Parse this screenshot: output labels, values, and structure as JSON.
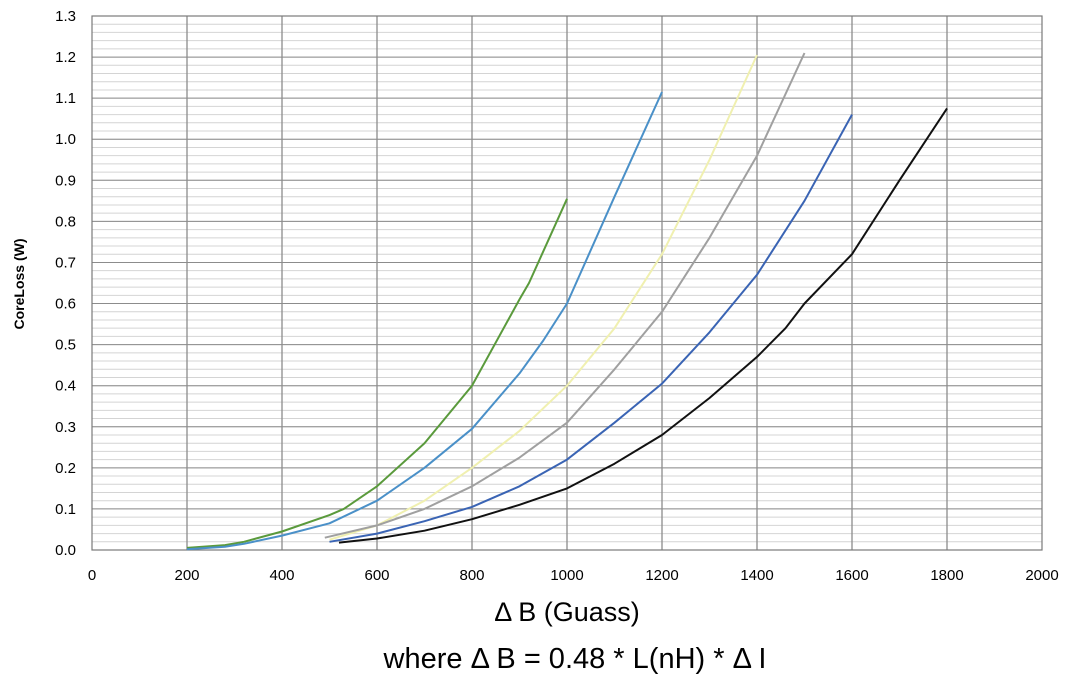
{
  "chart_data": {
    "type": "line",
    "xlabel": "Δ B (Guass)",
    "formula": "where Δ B = 0.48 * L(nH) * Δ I",
    "ylabel": "CoreLoss (W)",
    "xlim": [
      0,
      2000
    ],
    "ylim": [
      0,
      1.3
    ],
    "x_ticks": [
      "0",
      "200",
      "400",
      "600",
      "800",
      "1000",
      "1200",
      "1400",
      "1600",
      "1800",
      "2000"
    ],
    "y_ticks": [
      "0.0",
      "0.1",
      "0.2",
      "0.3",
      "0.4",
      "0.5",
      "0.6",
      "0.7",
      "0.8",
      "0.9",
      "1.0",
      "1.1",
      "1.2",
      "1.3"
    ],
    "x_major_step": 200,
    "y_major_step": 0.1,
    "y_minor_step": 0.02,
    "grid": true,
    "legend": "none",
    "series": [
      {
        "color": "#5a9a3c",
        "points": [
          [
            200,
            0.005
          ],
          [
            280,
            0.012
          ],
          [
            320,
            0.02
          ],
          [
            400,
            0.045
          ],
          [
            500,
            0.085
          ],
          [
            530,
            0.1
          ],
          [
            600,
            0.155
          ],
          [
            700,
            0.26
          ],
          [
            800,
            0.4
          ],
          [
            900,
            0.61
          ],
          [
            920,
            0.65
          ],
          [
            1000,
            0.855
          ]
        ]
      },
      {
        "color": "#4a90c8",
        "points": [
          [
            200,
            0.002
          ],
          [
            280,
            0.008
          ],
          [
            320,
            0.015
          ],
          [
            400,
            0.035
          ],
          [
            500,
            0.065
          ],
          [
            600,
            0.12
          ],
          [
            700,
            0.2
          ],
          [
            800,
            0.295
          ],
          [
            900,
            0.43
          ],
          [
            950,
            0.51
          ],
          [
            1000,
            0.6
          ],
          [
            1100,
            0.86
          ],
          [
            1200,
            1.115
          ]
        ]
      },
      {
        "color": "#f0f0b0",
        "points": [
          [
            500,
            0.025
          ],
          [
            600,
            0.06
          ],
          [
            700,
            0.12
          ],
          [
            800,
            0.2
          ],
          [
            900,
            0.29
          ],
          [
            1000,
            0.4
          ],
          [
            1100,
            0.54
          ],
          [
            1200,
            0.72
          ],
          [
            1300,
            0.95
          ],
          [
            1400,
            1.205
          ]
        ]
      },
      {
        "color": "#a0a0a0",
        "points": [
          [
            490,
            0.03
          ],
          [
            600,
            0.06
          ],
          [
            700,
            0.1
          ],
          [
            800,
            0.155
          ],
          [
            900,
            0.225
          ],
          [
            1000,
            0.31
          ],
          [
            1100,
            0.44
          ],
          [
            1200,
            0.58
          ],
          [
            1300,
            0.76
          ],
          [
            1400,
            0.96
          ],
          [
            1500,
            1.21
          ]
        ]
      },
      {
        "color": "#3a64b4",
        "points": [
          [
            500,
            0.02
          ],
          [
            600,
            0.04
          ],
          [
            700,
            0.07
          ],
          [
            800,
            0.105
          ],
          [
            900,
            0.155
          ],
          [
            1000,
            0.22
          ],
          [
            1100,
            0.31
          ],
          [
            1200,
            0.405
          ],
          [
            1300,
            0.53
          ],
          [
            1400,
            0.67
          ],
          [
            1500,
            0.85
          ],
          [
            1600,
            1.06
          ]
        ]
      },
      {
        "color": "#111111",
        "points": [
          [
            520,
            0.018
          ],
          [
            600,
            0.028
          ],
          [
            700,
            0.047
          ],
          [
            800,
            0.075
          ],
          [
            900,
            0.11
          ],
          [
            1000,
            0.15
          ],
          [
            1100,
            0.21
          ],
          [
            1200,
            0.28
          ],
          [
            1300,
            0.37
          ],
          [
            1400,
            0.47
          ],
          [
            1460,
            0.54
          ],
          [
            1500,
            0.6
          ],
          [
            1600,
            0.72
          ],
          [
            1700,
            0.9
          ],
          [
            1800,
            1.075
          ]
        ]
      }
    ]
  }
}
